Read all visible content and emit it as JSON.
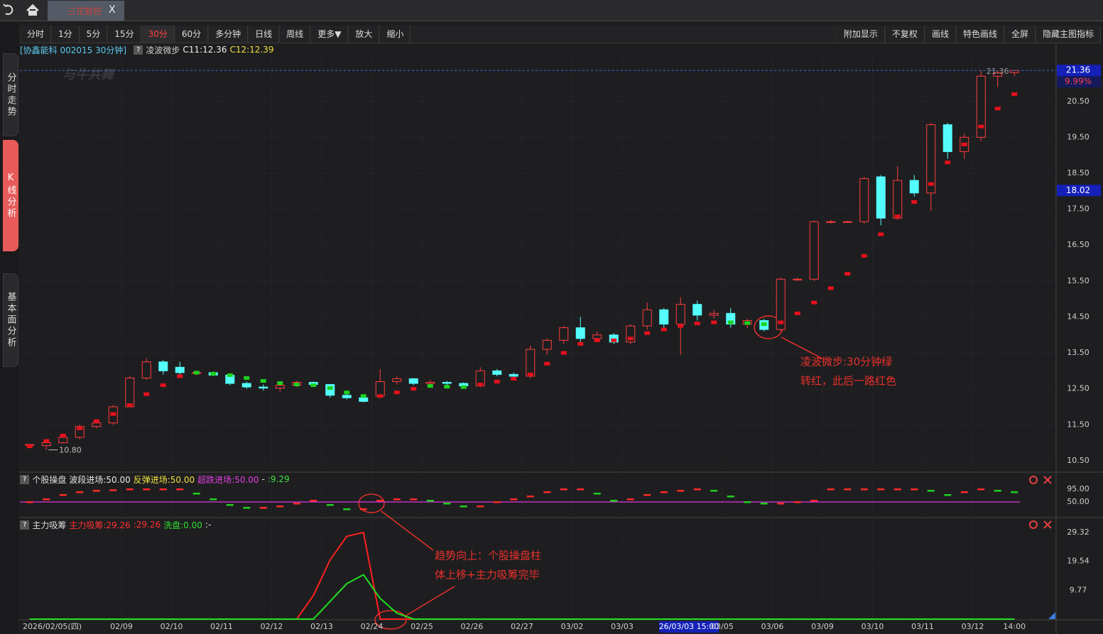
{
  "header": {
    "tab": "三花智控",
    "close": "X"
  },
  "sidebar": [
    {
      "label": "分时走势",
      "selected": false
    },
    {
      "label": "K线分析",
      "selected": true
    },
    {
      "label": "基本面分析",
      "selected": false
    }
  ],
  "toolbar": {
    "left": [
      {
        "label": "分时",
        "selected": false
      },
      {
        "label": "1分",
        "selected": false
      },
      {
        "label": "5分",
        "selected": false
      },
      {
        "label": "15分",
        "selected": false
      },
      {
        "label": "30分",
        "selected": true
      },
      {
        "label": "60分",
        "selected": false
      },
      {
        "label": "多分钟",
        "selected": false
      },
      {
        "label": "日线",
        "selected": false
      },
      {
        "label": "周线",
        "selected": false
      },
      {
        "label": "更多▼",
        "selected": false
      },
      {
        "label": "放大",
        "selected": false
      },
      {
        "label": "缩小",
        "selected": false
      }
    ],
    "right": [
      {
        "label": "附加显示",
        "selected": false
      },
      {
        "label": "不复权",
        "selected": false
      },
      {
        "label": "画线",
        "selected": false
      },
      {
        "label": "特色画线",
        "selected": false
      },
      {
        "label": "全屏",
        "selected": false
      },
      {
        "label": "隐藏主图指标",
        "selected": false
      }
    ]
  },
  "info": {
    "stock": "[协鑫能科 002015 30分钟]",
    "help": "?",
    "indicator": "凌波微步",
    "c11": "C11:12.36",
    "c12": "C12:12.39"
  },
  "watermark": "与牛共舞",
  "annotations": [
    {
      "lines": [
        "凌波微步:30分钟绿",
        "转红，此后一路红色"
      ]
    },
    {
      "lines": [
        "趋势向上：个股操盘柱",
        "体上移+主力吸筹完毕"
      ]
    }
  ],
  "chart_data": [
    {
      "type": "candlestick",
      "categories": [
        "2026/02/05(四)",
        null,
        null,
        null,
        null,
        null,
        "02/09",
        null,
        null,
        "02/10",
        null,
        null,
        "02/11",
        null,
        null,
        "02/12",
        null,
        null,
        "02/13",
        null,
        null,
        "02/24",
        null,
        null,
        "02/25",
        null,
        null,
        "02/26",
        null,
        null,
        "02/27",
        null,
        null,
        "03/02",
        null,
        null,
        "03/03",
        null,
        null,
        null,
        null,
        null,
        "03/05",
        null,
        null,
        "03/06",
        null,
        null,
        "03/09",
        null,
        null,
        "03/10",
        null,
        null,
        "03/11",
        null,
        null,
        "03/12",
        null,
        "14:00"
      ],
      "open": [
        10.95,
        10.92,
        11.0,
        11.15,
        11.45,
        11.55,
        12.0,
        12.8,
        13.25,
        13.1,
        12.95,
        12.95,
        12.88,
        12.65,
        12.55,
        12.52,
        12.6,
        12.68,
        12.62,
        12.32,
        12.25,
        12.3,
        12.7,
        12.78,
        12.65,
        12.68,
        12.65,
        12.58,
        13.0,
        12.9,
        12.85,
        13.6,
        13.85,
        14.2,
        13.9,
        14.0,
        13.8,
        14.25,
        14.7,
        14.3,
        14.85,
        14.55,
        14.6,
        14.3,
        14.4,
        14.15,
        15.55,
        15.55,
        17.15,
        17.15,
        17.15,
        18.4,
        17.25,
        18.3,
        17.95,
        19.85,
        19.1,
        19.5,
        21.2,
        21.3
      ],
      "high": [
        10.97,
        11.05,
        11.2,
        11.5,
        11.6,
        12.05,
        12.85,
        13.35,
        13.3,
        13.25,
        13.0,
        12.98,
        12.9,
        12.7,
        12.62,
        12.65,
        12.72,
        12.7,
        12.64,
        12.38,
        12.3,
        13.05,
        12.85,
        12.8,
        12.75,
        12.72,
        12.68,
        13.1,
        13.05,
        12.95,
        13.7,
        13.9,
        14.25,
        14.5,
        14.1,
        14.05,
        14.3,
        14.9,
        14.75,
        15.05,
        14.95,
        14.7,
        14.75,
        14.45,
        14.45,
        15.6,
        15.6,
        17.18,
        17.2,
        17.18,
        18.4,
        18.45,
        18.7,
        18.45,
        19.9,
        19.9,
        19.6,
        21.36,
        21.36,
        21.36
      ],
      "low": [
        10.92,
        10.8,
        10.98,
        11.1,
        11.4,
        11.5,
        12.0,
        12.75,
        12.9,
        12.9,
        12.88,
        12.85,
        12.6,
        12.5,
        12.45,
        12.42,
        12.55,
        12.58,
        12.25,
        12.2,
        12.12,
        12.28,
        12.62,
        12.6,
        12.58,
        12.6,
        12.55,
        12.55,
        12.85,
        12.8,
        12.8,
        13.45,
        13.75,
        13.8,
        13.85,
        13.75,
        13.75,
        14.15,
        14.2,
        13.45,
        14.4,
        14.45,
        14.2,
        14.18,
        14.1,
        14.1,
        15.5,
        15.5,
        17.1,
        17.12,
        17.1,
        17.05,
        17.2,
        17.85,
        17.45,
        18.9,
        18.9,
        19.4,
        20.9,
        21.2
      ],
      "close": [
        10.95,
        11.0,
        11.15,
        11.45,
        11.55,
        12.0,
        12.8,
        13.25,
        13.0,
        12.95,
        12.95,
        12.88,
        12.65,
        12.55,
        12.52,
        12.6,
        12.68,
        12.62,
        12.32,
        12.25,
        12.15,
        12.7,
        12.78,
        12.65,
        12.68,
        12.65,
        12.58,
        13.0,
        12.9,
        12.85,
        13.6,
        13.85,
        14.2,
        13.9,
        14.0,
        13.8,
        14.25,
        14.7,
        14.3,
        14.85,
        14.55,
        14.6,
        14.3,
        14.4,
        14.15,
        15.55,
        15.55,
        17.15,
        17.15,
        17.15,
        18.35,
        17.25,
        18.3,
        17.95,
        19.85,
        19.1,
        19.5,
        21.2,
        21.3,
        21.36
      ],
      "up_color": "#ff3c3c",
      "down_color": "#54fcfc",
      "trend": [
        {
          "color": "#e8101c",
          "values": [
            10.9,
            11.05,
            11.2,
            11.4,
            11.6,
            11.8,
            12.05,
            12.35,
            12.6,
            12.85,
            null,
            null,
            null,
            null,
            null,
            null,
            null,
            null,
            null,
            null,
            null,
            12.3,
            12.4,
            12.5,
            null,
            null,
            null,
            12.62,
            12.7,
            12.78,
            12.9,
            13.2,
            13.5,
            13.75,
            13.85,
            13.85,
            13.9,
            14.05,
            14.15,
            14.25,
            14.32,
            14.35,
            null,
            null,
            null,
            14.35,
            14.6,
            14.9,
            15.3,
            15.7,
            16.2,
            16.8,
            17.3,
            17.7,
            18.2,
            18.8,
            19.3,
            19.8,
            20.3,
            20.7
          ]
        },
        {
          "color": "#1ed21e",
          "values": [
            null,
            null,
            null,
            null,
            null,
            null,
            null,
            null,
            null,
            null,
            12.95,
            12.92,
            12.88,
            12.8,
            12.72,
            12.66,
            12.62,
            12.6,
            12.52,
            12.4,
            12.3,
            null,
            null,
            null,
            12.58,
            12.56,
            12.55,
            null,
            null,
            null,
            null,
            null,
            null,
            null,
            null,
            null,
            null,
            null,
            null,
            null,
            null,
            null,
            14.35,
            14.33,
            14.3,
            null,
            null,
            null,
            null,
            null,
            null,
            null,
            null,
            null,
            null,
            null,
            null,
            null,
            null,
            null
          ]
        }
      ],
      "ylim": [
        10.28,
        21.74
      ],
      "yticks": [
        {
          "value": 10.5,
          "label": "10.50"
        },
        {
          "value": 11.5,
          "label": "11.50"
        },
        {
          "value": 12.5,
          "label": "12.50"
        },
        {
          "value": 13.5,
          "label": "13.50"
        },
        {
          "value": 14.5,
          "label": "14.50"
        },
        {
          "value": 15.5,
          "label": "15.50"
        },
        {
          "value": 16.5,
          "label": "16.50"
        },
        {
          "value": 17.5,
          "label": "17.50"
        },
        {
          "value": 18.5,
          "label": "18.50"
        },
        {
          "value": 19.5,
          "label": "19.50"
        },
        {
          "value": 20.5,
          "label": "20.50"
        }
      ],
      "grid": true,
      "last_price": {
        "value": 21.36,
        "label": "21.36"
      },
      "last_change": "9.99%",
      "crosshair_price": {
        "value": 18.02,
        "label": "18.02"
      },
      "crosshair_time": "26/03/03 15:00",
      "low_mark": {
        "value": 10.8,
        "label": "10.80"
      },
      "high_mark": {
        "value": 21.36,
        "label": "21.36"
      }
    },
    {
      "type": "dash",
      "title": "个股操盘",
      "help": "?",
      "legend": [
        {
          "text": "波段进场:50.00",
          "color": "#e8e8e8"
        },
        {
          "text": "反弹进场:50.00",
          "color": "#f0e040"
        },
        {
          "text": "超跌进场:50.00",
          "color": "#e040e0"
        },
        {
          "text": "-",
          "color": "#e8e8e8"
        },
        {
          "text": ":9.29",
          "color": "#40e040"
        }
      ],
      "values": [
        50,
        60,
        75,
        85,
        90,
        92,
        95,
        95,
        95,
        95,
        80,
        60,
        40,
        30,
        30,
        35,
        45,
        55,
        40,
        25,
        25,
        55,
        60,
        60,
        55,
        45,
        35,
        35,
        50,
        60,
        70,
        85,
        95,
        95,
        80,
        55,
        60,
        75,
        85,
        90,
        95,
        90,
        70,
        50,
        45,
        45,
        50,
        55,
        95,
        95,
        95,
        95,
        95,
        95,
        90,
        75,
        85,
        95,
        90,
        85
      ],
      "up_color": "#ff2a2a",
      "down_color": "#20d020",
      "level": 50,
      "level_color": "#c030c0",
      "ylim": [
        -2.5,
        147.5
      ],
      "yticks": [
        {
          "value": 95,
          "label": "95.00"
        },
        {
          "value": 50,
          "label": "50.00"
        }
      ]
    },
    {
      "type": "spike",
      "title": "主力吸筹",
      "help": "?",
      "legend": [
        {
          "text": "主力吸筹:29.26",
          "color": "#ff3030"
        },
        {
          "text": ":29.26",
          "color": "#ff3030"
        },
        {
          "text": "洗盘:0.00",
          "color": "#30e030"
        },
        {
          "text": ":-",
          "color": "#e8e8e8"
        }
      ],
      "series": [
        {
          "color": "#ff2020",
          "values": [
            0,
            0,
            0,
            0,
            0,
            0,
            0,
            0,
            0,
            0,
            0,
            0,
            0,
            0,
            0,
            0,
            0,
            8,
            20,
            28,
            29.3,
            0,
            0,
            0,
            0,
            0,
            0,
            0,
            0,
            0,
            0,
            0,
            0,
            0,
            0,
            0,
            0,
            0,
            0,
            0,
            0,
            0,
            0,
            0,
            0,
            0,
            0,
            0,
            0,
            0,
            0,
            0,
            0,
            0,
            0,
            0,
            0,
            0,
            0,
            0
          ]
        },
        {
          "color": "#20e020",
          "values": [
            0,
            0,
            0,
            0,
            0,
            0,
            0,
            0,
            0,
            0,
            0,
            0,
            0,
            0,
            0,
            0,
            0,
            0,
            6,
            12,
            15,
            7,
            2,
            0,
            0,
            0,
            0,
            0,
            0,
            0,
            0,
            0,
            0,
            0,
            0,
            0,
            0,
            0,
            0,
            0,
            0,
            0,
            0,
            0,
            0,
            0,
            0,
            0,
            0,
            0,
            0,
            0,
            0,
            0,
            0,
            0,
            0,
            0,
            0,
            0
          ]
        }
      ],
      "ylim": [
        0,
        30.5
      ],
      "yticks": [
        {
          "value": 9.77,
          "label": "9.77"
        },
        {
          "value": 19.54,
          "label": "19.54"
        },
        {
          "value": 29.32,
          "label": "29.32"
        }
      ]
    }
  ]
}
